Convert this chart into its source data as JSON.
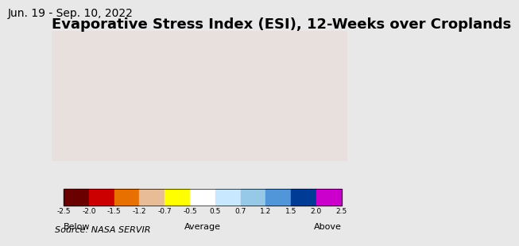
{
  "title": "Evaporative Stress Index (ESI), 12-Weeks over Croplands",
  "subtitle": "Jun. 19 - Sep. 10, 2022",
  "source": "Source: NASA SERVIR",
  "colorbar_colors": [
    "#6B0000",
    "#CC0000",
    "#E87000",
    "#E8BC96",
    "#FFFF00",
    "#FFFFFF",
    "#C8E8FF",
    "#96C8E8",
    "#5096D8",
    "#003C96",
    "#CC00CC"
  ],
  "colorbar_labels": [
    "-2.5",
    "-2.0",
    "-1.5",
    "-1.2",
    "-0.7",
    "-0.5",
    "0.5",
    "0.7",
    "1.2",
    "1.5",
    "2.0",
    "2.5"
  ],
  "below_label": "Below",
  "average_label": "Average",
  "above_label": "Above",
  "map_background": "#ADD8E6",
  "land_background": "#E8E0DC",
  "figure_background": "#E8E8E8",
  "title_fontsize": 13,
  "subtitle_fontsize": 10,
  "source_fontsize": 8
}
